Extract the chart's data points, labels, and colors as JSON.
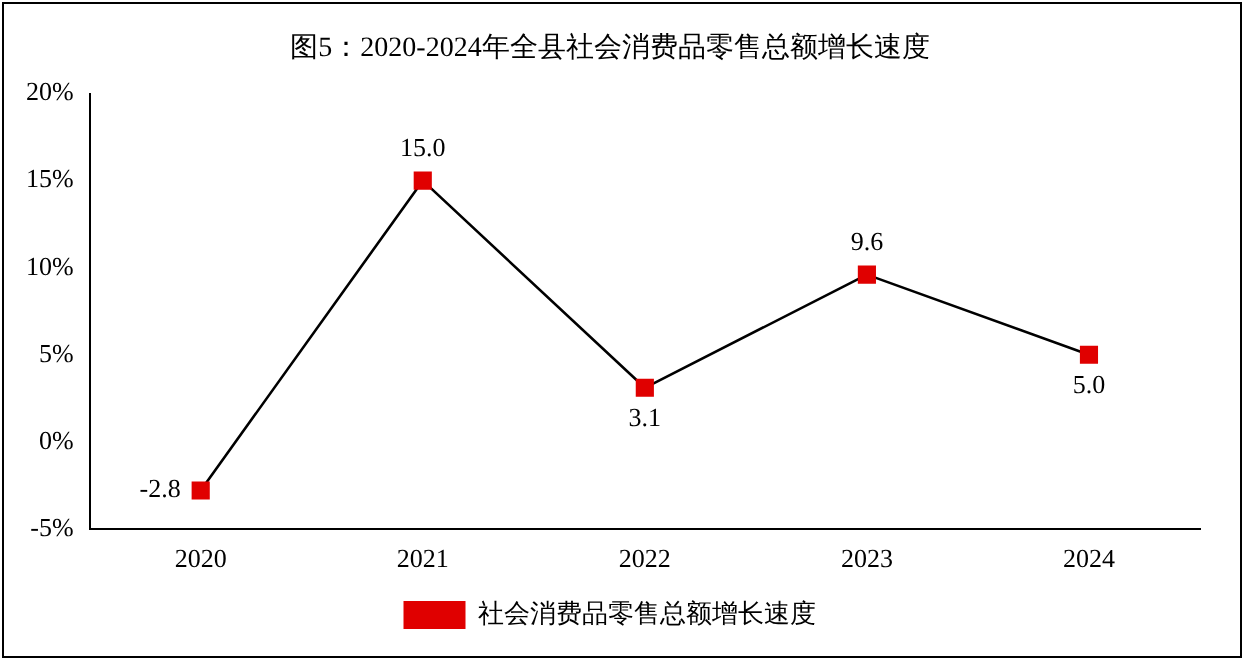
{
  "chart_data": {
    "type": "line",
    "title": "图5：2020-2024年全县社会消费品零售总额增长速度",
    "categories": [
      "2020",
      "2021",
      "2022",
      "2023",
      "2024"
    ],
    "series": [
      {
        "name": "社会消费品零售总额增长速度",
        "color": "#e00000",
        "values": [
          -2.8,
          15.0,
          3.1,
          9.6,
          5.0
        ],
        "value_labels": [
          "-2.8",
          "15.0",
          "3.1",
          "9.6",
          "5.0"
        ]
      }
    ],
    "ylim": [
      -5,
      20
    ],
    "yticks": [
      {
        "value": -5,
        "label": "-5%"
      },
      {
        "value": 0,
        "label": "0%"
      },
      {
        "value": 5,
        "label": "5%"
      },
      {
        "value": 10,
        "label": "10%"
      },
      {
        "value": 15,
        "label": "15%"
      },
      {
        "value": 20,
        "label": "20%"
      }
    ],
    "grid": false,
    "legend": "bottom",
    "marker": "square",
    "line_style": "solid"
  }
}
